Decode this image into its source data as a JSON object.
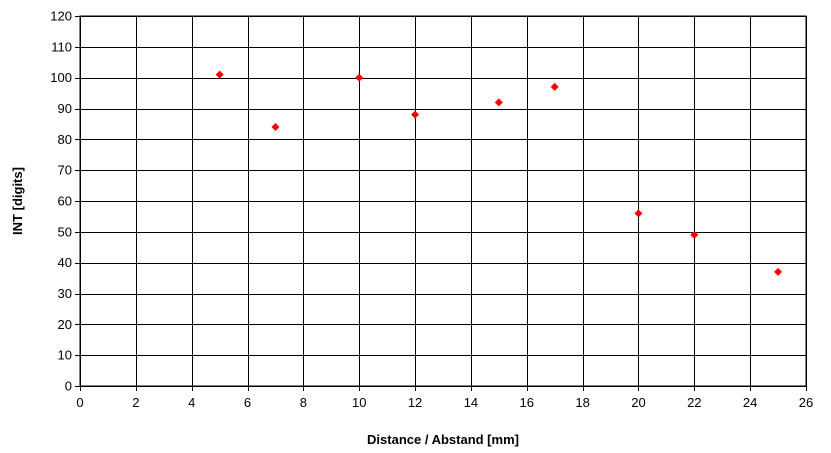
{
  "chart_data": {
    "type": "scatter",
    "title": "",
    "xlabel": "Distance / Abstand [mm]",
    "ylabel": "INT [digits]",
    "xlim": [
      0,
      26
    ],
    "ylim": [
      0,
      120
    ],
    "xticks": [
      0,
      2,
      4,
      6,
      8,
      10,
      12,
      14,
      16,
      18,
      20,
      22,
      24,
      26
    ],
    "yticks": [
      0,
      10,
      20,
      30,
      40,
      50,
      60,
      70,
      80,
      90,
      100,
      110,
      120
    ],
    "grid": true,
    "legend": "none",
    "marker": "diamond",
    "marker_color": "#ff0000",
    "points": [
      {
        "x": 5,
        "y": 101
      },
      {
        "x": 7,
        "y": 84
      },
      {
        "x": 10,
        "y": 100
      },
      {
        "x": 12,
        "y": 88
      },
      {
        "x": 15,
        "y": 92
      },
      {
        "x": 17,
        "y": 97
      },
      {
        "x": 20,
        "y": 56
      },
      {
        "x": 22,
        "y": 49
      },
      {
        "x": 25,
        "y": 37
      }
    ]
  }
}
